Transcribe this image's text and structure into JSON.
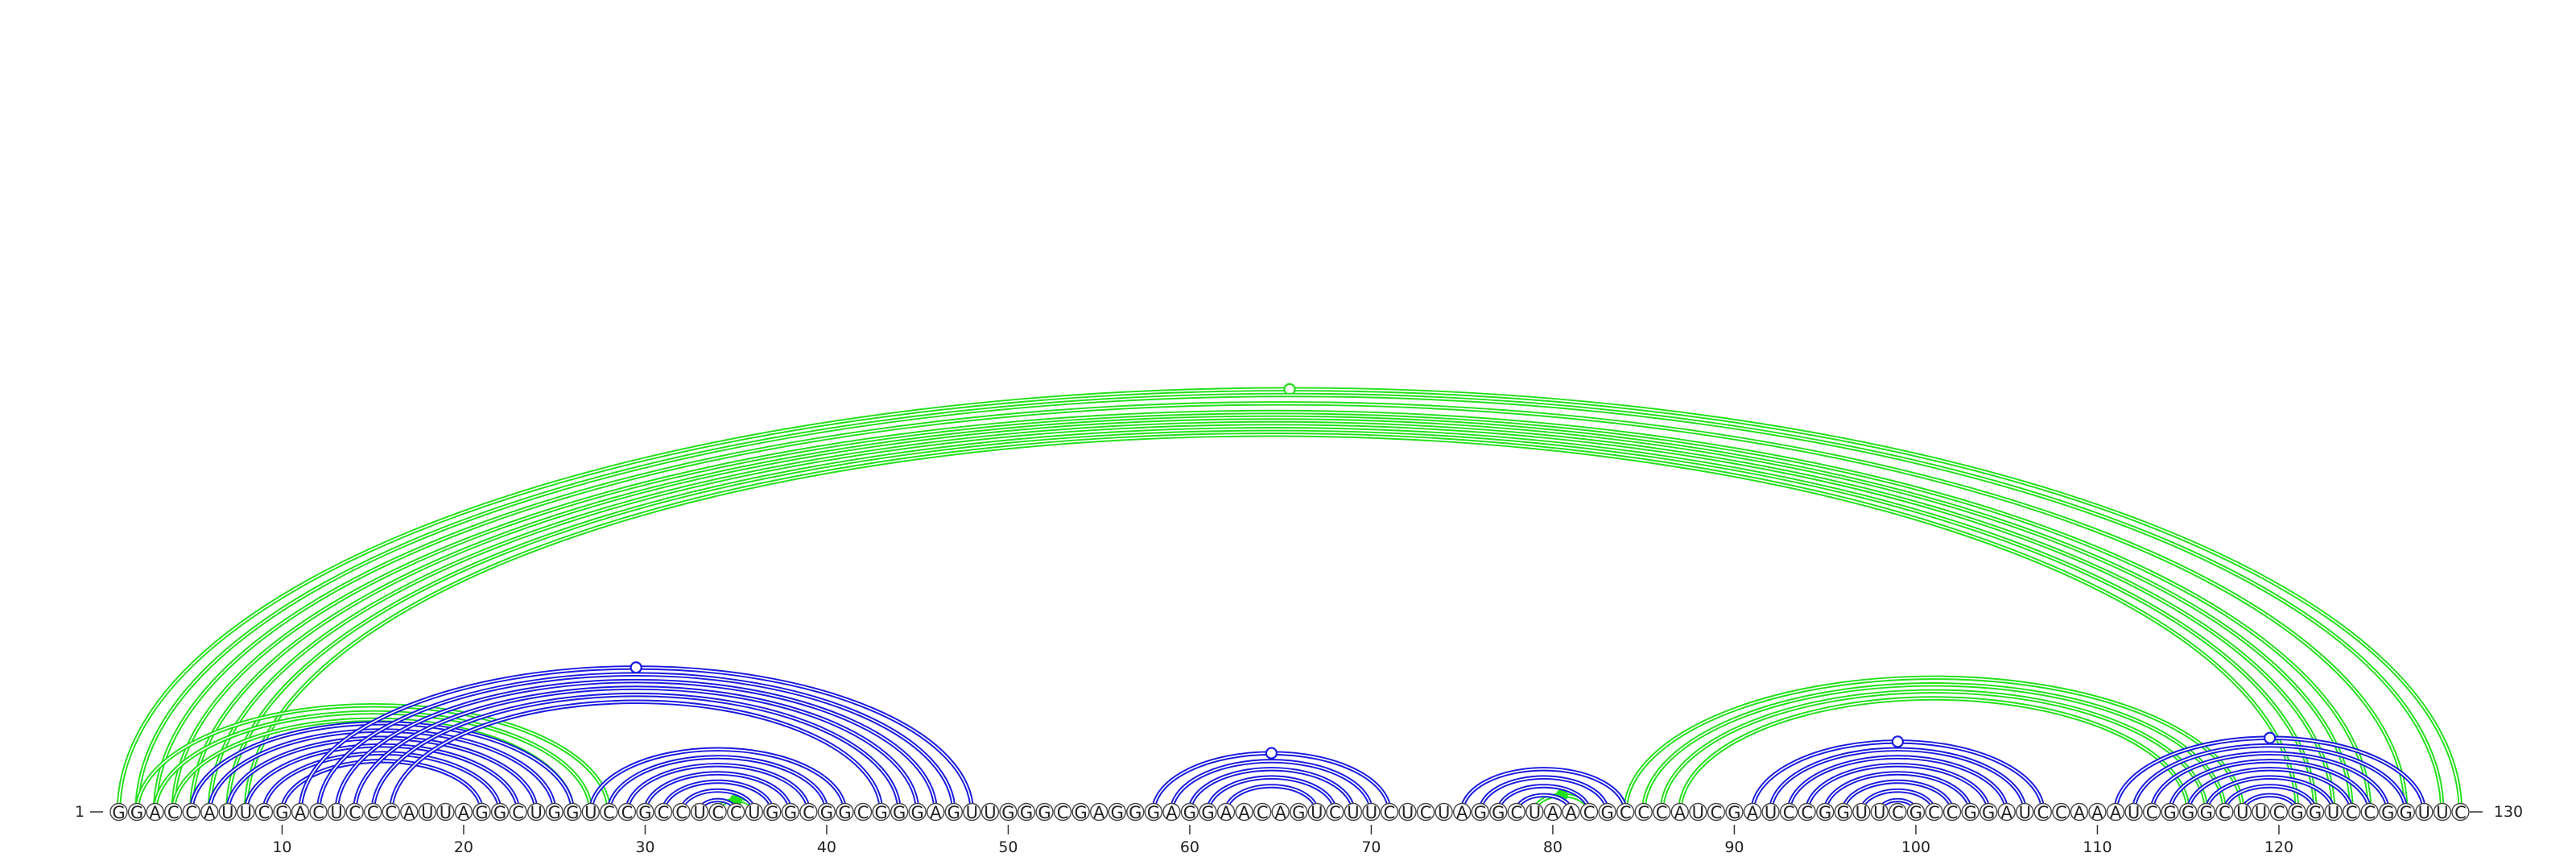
{
  "sequence": "GGACCAUUCGACUCCCAUUAGGCUGGUCCGCCUCCUGGCGGCGGGAGUUGGGCGAGGGAGGAACAGUCUUCUCUAGGCUAACGCCCAUCGAUCCGGUUCGCCGGAUCCAAAUCGGGCUUCGGUCCGGUUC",
  "start_label": "1",
  "end_label": "130",
  "ticks": [
    "10",
    "20",
    "30",
    "40",
    "50",
    "60",
    "70",
    "80",
    "90",
    "100",
    "110",
    "120"
  ],
  "colors": {
    "green": "#22e01a",
    "blue": "#1a1ae0"
  },
  "arc_groups": [
    {
      "color": "green",
      "marker": "open",
      "pairs": [
        [
          1,
          130
        ],
        [
          2,
          129
        ],
        [
          3,
          127
        ],
        [
          4,
          125
        ],
        [
          5,
          124
        ],
        [
          6,
          123
        ],
        [
          7,
          122
        ],
        [
          8,
          121
        ]
      ]
    },
    {
      "color": "green",
      "marker": "none",
      "pairs": [
        [
          2,
          28
        ],
        [
          3,
          27
        ],
        [
          4,
          26
        ]
      ]
    },
    {
      "color": "green",
      "marker": "filled",
      "pairs": [
        [
          34,
          36
        ]
      ]
    },
    {
      "color": "green",
      "marker": "filled",
      "pairs": [
        [
          79,
          82
        ]
      ]
    },
    {
      "color": "green",
      "marker": "none",
      "pairs": [
        [
          84,
          118
        ],
        [
          85,
          117
        ],
        [
          86,
          116
        ],
        [
          87,
          115
        ]
      ]
    },
    {
      "color": "blue",
      "marker": "none",
      "pairs": [
        [
          5,
          26
        ],
        [
          6,
          25
        ],
        [
          7,
          24
        ],
        [
          8,
          23
        ],
        [
          9,
          22
        ],
        [
          10,
          21
        ]
      ]
    },
    {
      "color": "blue",
      "marker": "open",
      "pairs": [
        [
          11,
          48
        ],
        [
          12,
          47
        ],
        [
          13,
          46
        ],
        [
          14,
          45
        ],
        [
          15,
          44
        ],
        [
          16,
          43
        ]
      ]
    },
    {
      "color": "blue",
      "marker": "none",
      "pairs": [
        [
          27,
          41
        ],
        [
          28,
          40
        ],
        [
          29,
          39
        ],
        [
          30,
          38
        ],
        [
          31,
          37
        ],
        [
          32,
          36
        ],
        [
          33,
          35
        ]
      ]
    },
    {
      "color": "blue",
      "marker": "open",
      "pairs": [
        [
          58,
          71
        ],
        [
          59,
          70
        ],
        [
          60,
          69
        ],
        [
          61,
          68
        ],
        [
          62,
          67
        ]
      ]
    },
    {
      "color": "blue",
      "marker": "none",
      "pairs": [
        [
          75,
          84
        ],
        [
          76,
          83
        ],
        [
          77,
          82
        ],
        [
          78,
          81
        ]
      ]
    },
    {
      "color": "blue",
      "marker": "open",
      "pairs": [
        [
          91,
          107
        ],
        [
          92,
          106
        ],
        [
          93,
          105
        ],
        [
          94,
          104
        ],
        [
          95,
          103
        ],
        [
          96,
          102
        ],
        [
          97,
          101
        ],
        [
          98,
          100
        ]
      ]
    },
    {
      "color": "blue",
      "marker": "open",
      "pairs": [
        [
          111,
          128
        ],
        [
          112,
          127
        ],
        [
          113,
          126
        ],
        [
          114,
          125
        ],
        [
          115,
          124
        ],
        [
          116,
          123
        ],
        [
          117,
          122
        ],
        [
          118,
          121
        ]
      ]
    }
  ]
}
